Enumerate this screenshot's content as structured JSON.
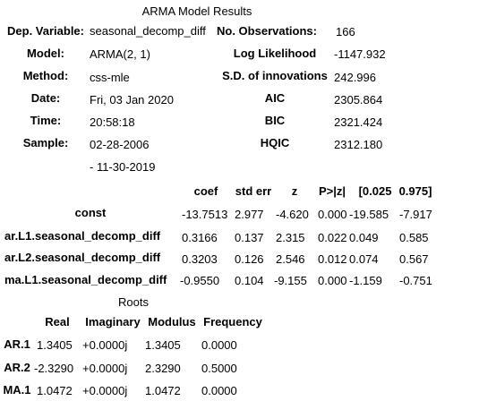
{
  "summary": {
    "title": "ARMA Model Results",
    "left": [
      {
        "label": "Dep. Variable:",
        "value": "seasonal_decomp_diff"
      },
      {
        "label": "Model:",
        "value": "ARMA(2, 1)"
      },
      {
        "label": "Method:",
        "value": "css-mle"
      },
      {
        "label": "Date:",
        "value": "Fri, 03 Jan 2020"
      },
      {
        "label": "Time:",
        "value": "20:58:18"
      },
      {
        "label": "Sample:",
        "value": "02-28-2006"
      }
    ],
    "sample_end": "- 11-30-2019",
    "right": [
      {
        "label": "No. Observations:",
        "value": "166"
      },
      {
        "label": "Log Likelihood",
        "value": "-1147.932"
      },
      {
        "label": "S.D. of innovations",
        "value": "242.996"
      },
      {
        "label": "AIC",
        "value": "2305.864"
      },
      {
        "label": "BIC",
        "value": "2321.424"
      },
      {
        "label": "HQIC",
        "value": "2312.180"
      }
    ]
  },
  "coef_table": {
    "headers": [
      "coef",
      "std err",
      "z",
      "P>|z|",
      "[0.025",
      "0.975]"
    ],
    "rows": [
      {
        "name": "const",
        "values": [
          "-13.7513",
          "2.977",
          "-4.620",
          "0.000",
          "-19.585",
          "-7.917"
        ]
      },
      {
        "name": "ar.L1.seasonal_decomp_diff",
        "values": [
          "0.3166",
          "0.137",
          "2.315",
          "0.022",
          "0.049",
          "0.585"
        ]
      },
      {
        "name": "ar.L2.seasonal_decomp_diff",
        "values": [
          "0.3203",
          "0.126",
          "2.546",
          "0.012",
          "0.074",
          "0.567"
        ]
      },
      {
        "name": "ma.L1.seasonal_decomp_diff",
        "values": [
          "-0.9550",
          "0.104",
          "-9.155",
          "0.000",
          "-1.159",
          "-0.751"
        ]
      }
    ]
  },
  "roots_table": {
    "title": "Roots",
    "headers": [
      "Real",
      "Imaginary",
      "Modulus",
      "Frequency"
    ],
    "rows": [
      {
        "name": "AR.1",
        "values": [
          "1.3405",
          "+0.0000j",
          "1.3405",
          "0.0000"
        ]
      },
      {
        "name": "AR.2",
        "values": [
          "-2.3290",
          "+0.0000j",
          "2.3290",
          "0.5000"
        ]
      },
      {
        "name": "MA.1",
        "values": [
          "1.0472",
          "+0.0000j",
          "1.0472",
          "0.0000"
        ]
      }
    ]
  }
}
